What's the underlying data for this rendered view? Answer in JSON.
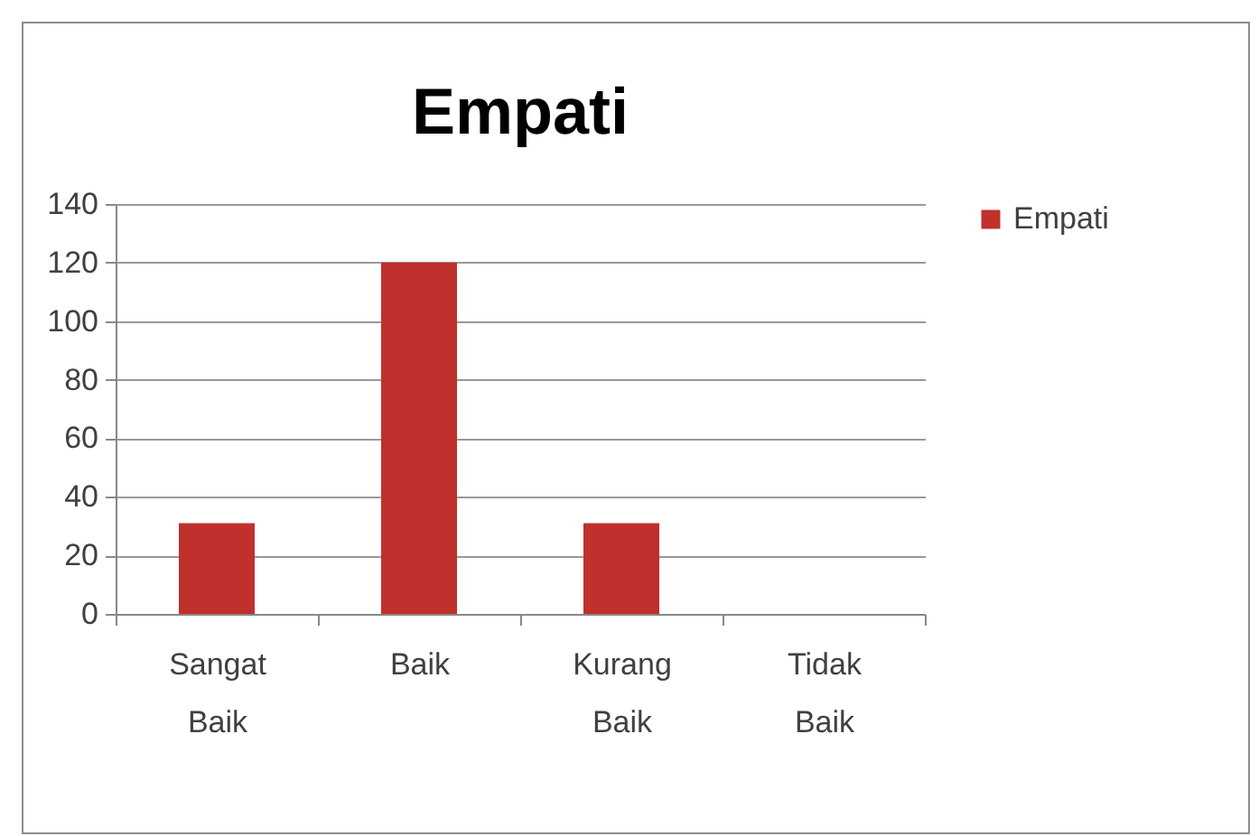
{
  "chart_data": {
    "type": "bar",
    "title": "Empati",
    "categories": [
      "Sangat Baik",
      "Baik",
      "Kurang Baik",
      "Tidak Baik"
    ],
    "series": [
      {
        "name": "Empati",
        "color": "#c0302c",
        "values": [
          31,
          120,
          31,
          0
        ]
      }
    ],
    "ylim": [
      0,
      140
    ],
    "yticks": [
      0,
      20,
      40,
      60,
      80,
      100,
      120,
      140
    ],
    "grid": "y",
    "legend": "right"
  }
}
